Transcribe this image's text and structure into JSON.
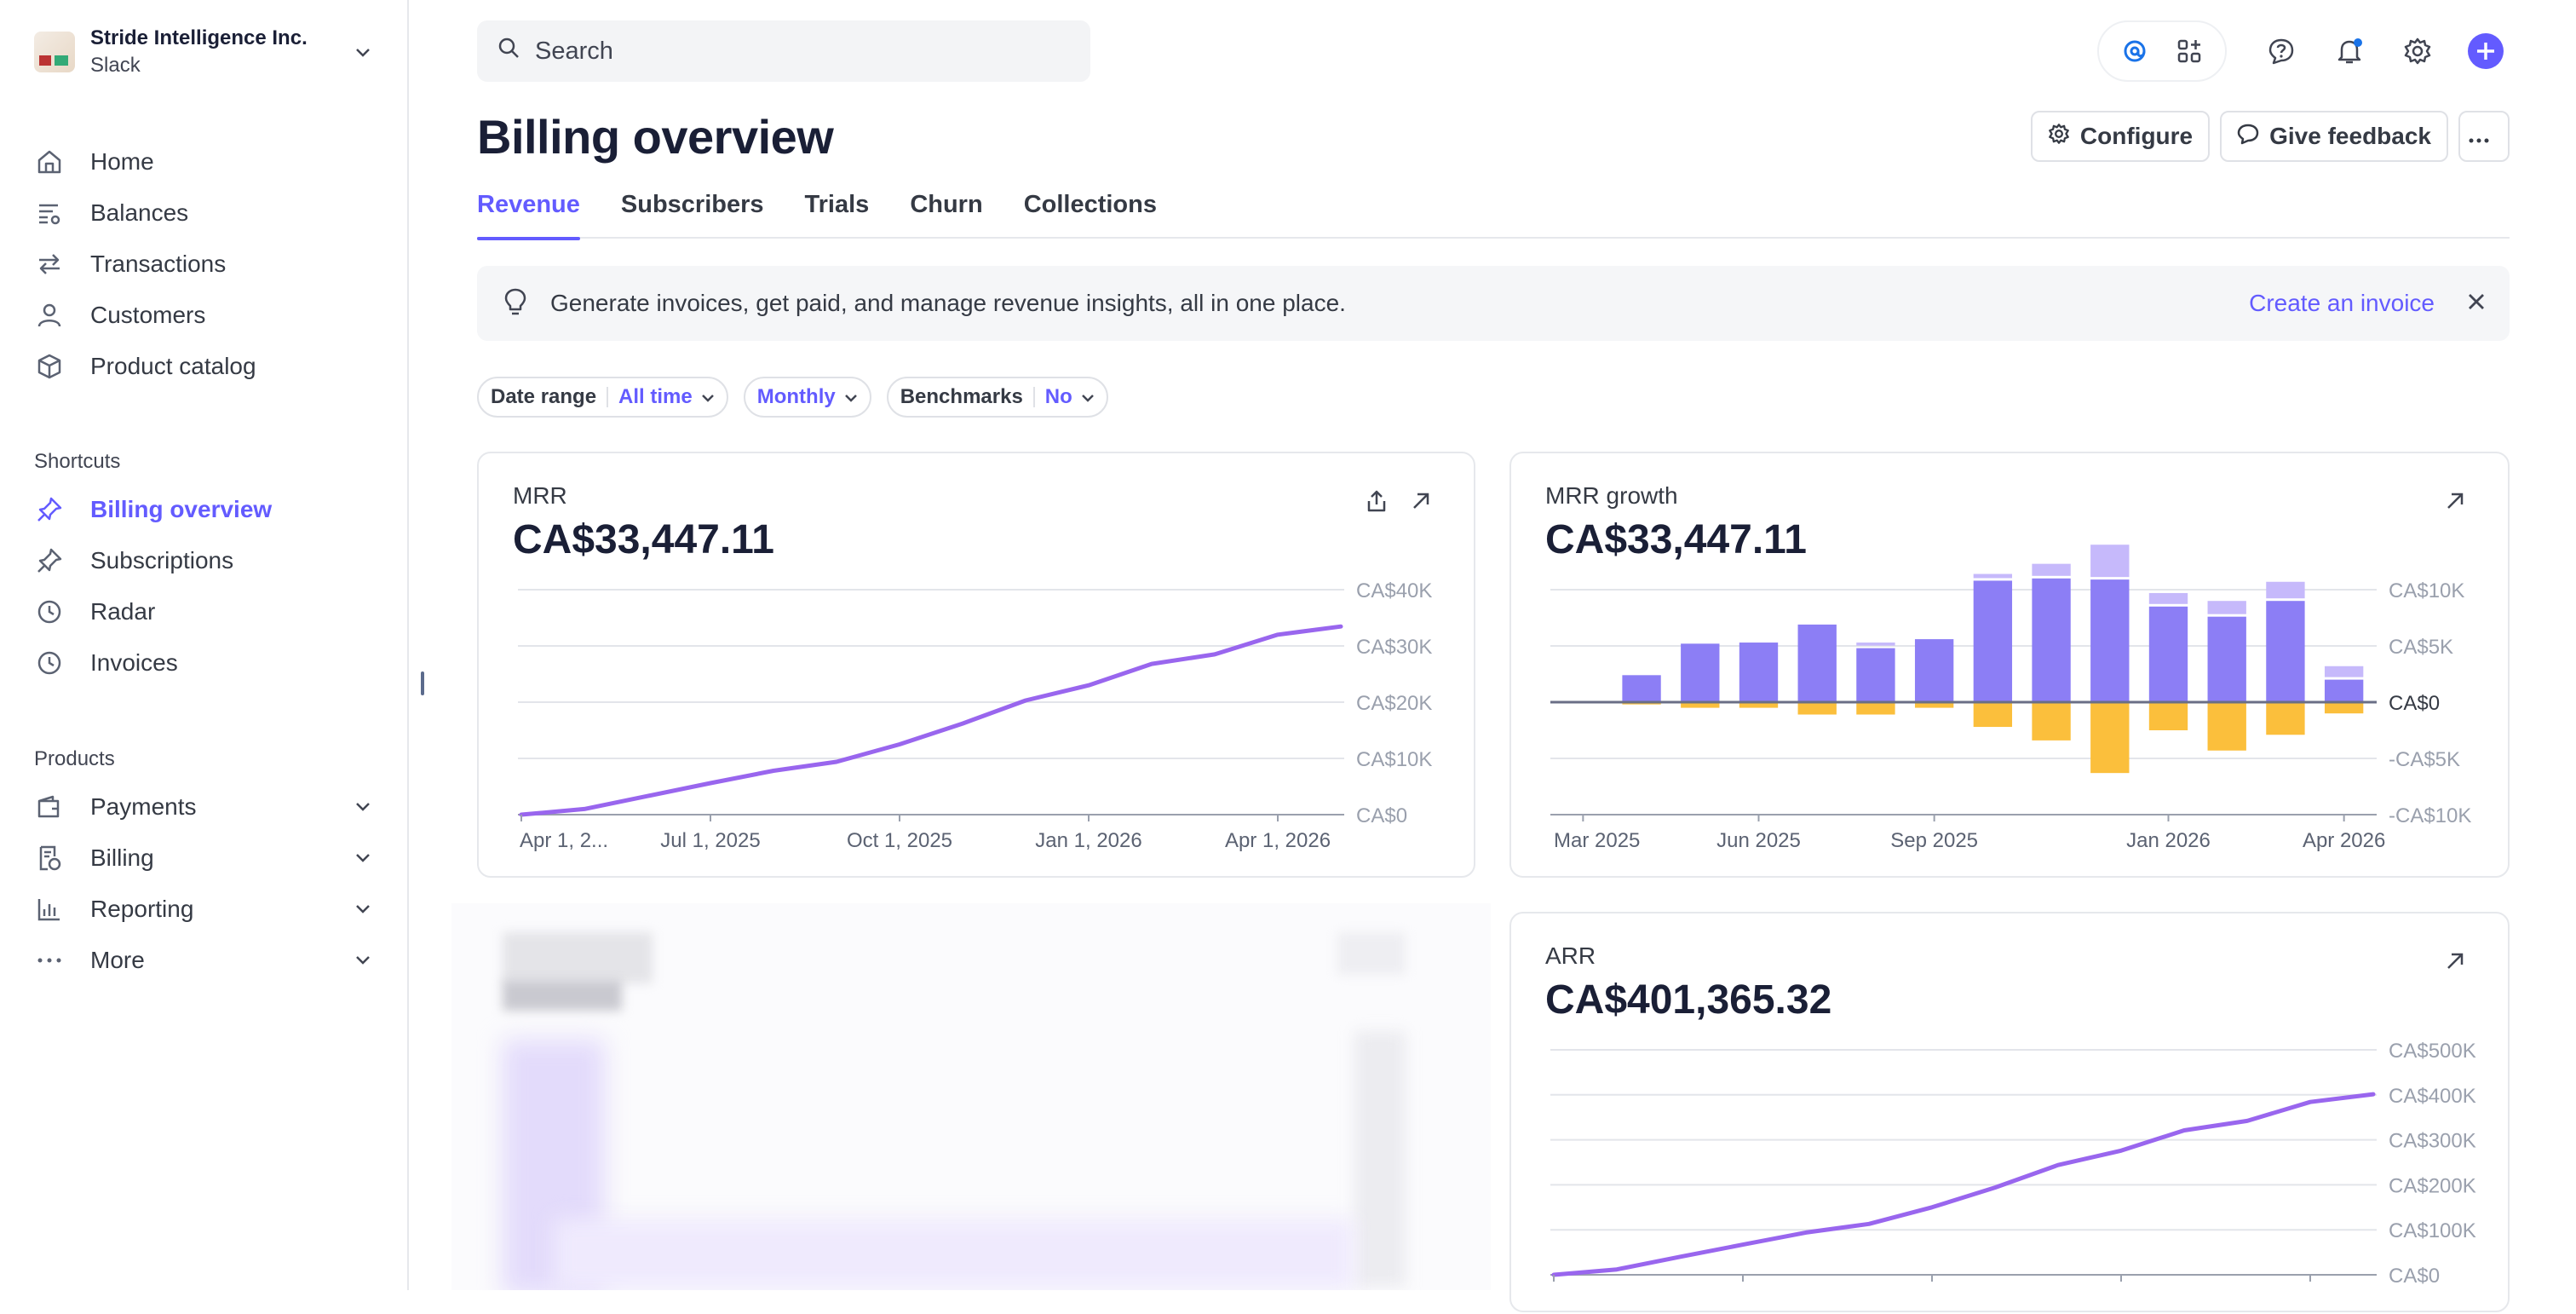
{
  "account": {
    "name": "Stride Intelligence Inc.",
    "workspace": "Slack"
  },
  "nav": [
    {
      "label": "Home",
      "icon": "home-icon"
    },
    {
      "label": "Balances",
      "icon": "balances-icon"
    },
    {
      "label": "Transactions",
      "icon": "transactions-icon"
    },
    {
      "label": "Customers",
      "icon": "customers-icon"
    },
    {
      "label": "Product catalog",
      "icon": "product-catalog-icon"
    }
  ],
  "shortcuts": {
    "heading": "Shortcuts",
    "items": [
      {
        "label": "Billing overview",
        "icon": "pin-icon",
        "active": true
      },
      {
        "label": "Subscriptions",
        "icon": "pin-icon"
      },
      {
        "label": "Radar",
        "icon": "clock-icon"
      },
      {
        "label": "Invoices",
        "icon": "clock-icon"
      }
    ]
  },
  "products": {
    "heading": "Products",
    "items": [
      {
        "label": "Payments",
        "icon": "wallet-icon"
      },
      {
        "label": "Billing",
        "icon": "billing-icon"
      },
      {
        "label": "Reporting",
        "icon": "reporting-icon"
      },
      {
        "label": "More",
        "icon": "more-dots-icon"
      }
    ]
  },
  "search": {
    "placeholder": "Search"
  },
  "header": {
    "title": "Billing overview",
    "configure": "Configure",
    "feedback": "Give feedback"
  },
  "tabs": [
    "Revenue",
    "Subscribers",
    "Trials",
    "Churn",
    "Collections"
  ],
  "banner": {
    "message": "Generate invoices, get paid, and manage revenue insights, all in one place.",
    "link": "Create an invoice"
  },
  "filters": {
    "date_label": "Date range",
    "date_value": "All time",
    "interval_value": "Monthly",
    "bench_label": "Benchmarks",
    "bench_value": "No"
  },
  "colors": {
    "accent": "#635bff",
    "line": "#9966ee",
    "bar_pos": "#8c7ef5",
    "bar_pos_light": "#c6b9fb",
    "bar_neg": "#fbbf3c"
  },
  "cards": {
    "mrr": {
      "title": "MRR",
      "value": "CA$33,447.11"
    },
    "growth": {
      "title": "MRR growth",
      "value": "CA$33,447.11"
    },
    "arr": {
      "title": "ARR",
      "value": "CA$401,365.32"
    }
  },
  "chart_data": [
    {
      "type": "line",
      "title": "MRR",
      "x": [
        "2025-04-01",
        "2025-05-01",
        "2025-06-01",
        "2025-07-01",
        "2025-08-01",
        "2025-09-01",
        "2025-10-01",
        "2025-11-01",
        "2025-12-01",
        "2026-01-01",
        "2026-02-01",
        "2026-03-01",
        "2026-04-01",
        "2026-04-15"
      ],
      "series": [
        {
          "values": [
            0,
            1000,
            3300,
            5600,
            7800,
            9400,
            12500,
            16200,
            20300,
            23000,
            26800,
            28500,
            32000,
            33447
          ]
        }
      ],
      "ylim": [
        0,
        40000
      ],
      "y_ticks": [
        "CA$0",
        "CA$10K",
        "CA$20K",
        "CA$30K",
        "CA$40K"
      ],
      "x_ticks": [
        "Apr 1, 2...",
        "Jul 1, 2025",
        "Oct 1, 2025",
        "Jan 1, 2026",
        "Apr 1, 2026"
      ],
      "grid": true
    },
    {
      "type": "bar",
      "title": "MRR growth",
      "categories": [
        "2025-03",
        "2025-04",
        "2025-05",
        "2025-06",
        "2025-07",
        "2025-08",
        "2025-09",
        "2025-10",
        "2025-11",
        "2025-12",
        "2026-01",
        "2026-02",
        "2026-03",
        "2026-04"
      ],
      "series": [
        {
          "values": [
            0,
            2400,
            5200,
            5300,
            6900,
            4800,
            5600,
            10800,
            11000,
            10900,
            8500,
            7600,
            9000,
            2000
          ]
        },
        {
          "values": [
            0,
            0,
            0,
            0,
            0,
            500,
            0,
            600,
            1300,
            3100,
            1200,
            1400,
            1700,
            1200
          ]
        },
        {
          "values": [
            0,
            -200,
            -500,
            -500,
            -1100,
            -1100,
            -500,
            -2200,
            -3400,
            -6300,
            -2500,
            -4300,
            -2900,
            -1000
          ]
        }
      ],
      "ylim": [
        -10000,
        10000
      ],
      "y_ticks": [
        "-CA$10K",
        "-CA$5K",
        "CA$0",
        "CA$5K",
        "CA$10K"
      ],
      "x_ticks": [
        "Mar 2025",
        "Jun 2025",
        "Sep 2025",
        "Jan 2026",
        "Apr 2026"
      ],
      "grid": true
    },
    {
      "type": "line",
      "title": "ARR",
      "x": [
        "2025-04-01",
        "2025-05-01",
        "2025-06-01",
        "2025-07-01",
        "2025-08-01",
        "2025-09-01",
        "2025-10-01",
        "2025-11-01",
        "2025-12-01",
        "2026-01-01",
        "2026-02-01",
        "2026-03-01",
        "2026-04-01",
        "2026-04-15"
      ],
      "series": [
        {
          "values": [
            0,
            12000,
            40000,
            67000,
            94000,
            113000,
            150000,
            194000,
            244000,
            276000,
            321000,
            342000,
            384000,
            401365
          ]
        }
      ],
      "ylim": [
        0,
        500000
      ],
      "y_ticks": [
        "CA$0",
        "CA$100K",
        "CA$200K",
        "CA$300K",
        "CA$400K",
        "CA$500K"
      ],
      "grid": true
    }
  ]
}
